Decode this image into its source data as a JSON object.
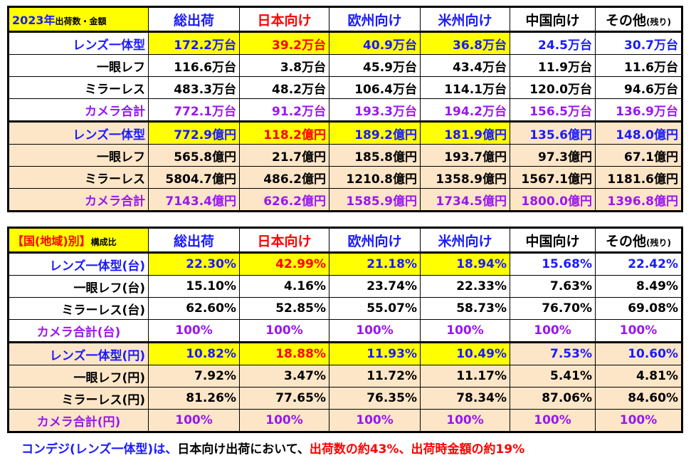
{
  "table1": {
    "header": [
      [
        "2023年",
        "出荷数・金額"
      ],
      "総出荷",
      "日本向け",
      "欧州向け",
      "米州向け",
      "中国向け",
      [
        "その他",
        "(残り)"
      ]
    ],
    "rows": [
      [
        "レンズ一体型",
        "172.2万台",
        "39.2万台",
        "40.9万台",
        "36.8万台",
        "24.5万台",
        "30.7万台"
      ],
      [
        "一眼レフ",
        "116.6万台",
        "3.8万台",
        "45.9万台",
        "43.4万台",
        "11.9万台",
        "11.6万台"
      ],
      [
        "ミラーレス",
        "483.3万台",
        "48.2万台",
        "106.4万台",
        "114.1万台",
        "120.0万台",
        "94.6万台"
      ],
      [
        "カメラ合計",
        "772.1万台",
        "91.2万台",
        "193.3万台",
        "194.2万台",
        "156.5万台",
        "136.9万台"
      ],
      [
        "レンズ一体型",
        "772.9億円",
        "118.2億円",
        "189.2億円",
        "181.9億円",
        "135.6億円",
        "148.0億円"
      ],
      [
        "一眼レフ",
        "565.8億円",
        "21.7億円",
        "185.8億円",
        "193.7億円",
        "97.3億円",
        "67.1億円"
      ],
      [
        "ミラーレス",
        "5804.7億円",
        "486.2億円",
        "1210.8億円",
        "1358.9億円",
        "1567.1億円",
        "1181.6億円"
      ],
      [
        "カメラ合計",
        "7143.4億円",
        "626.2億円",
        "1585.9億円",
        "1734.5億円",
        "1800.0億円",
        "1396.8億円"
      ]
    ]
  },
  "table2": {
    "header": [
      [
        "【国(地域)別】",
        "構成比"
      ],
      "総出荷",
      "日本向け",
      "欧州向け",
      "米州向け",
      "中国向け",
      [
        "その他",
        "(残り)"
      ]
    ],
    "rows": [
      [
        "レンズ一体型(台)",
        "22.30%",
        "42.99%",
        "21.18%",
        "18.94%",
        "15.68%",
        "22.42%"
      ],
      [
        "一眼レフ(台)",
        "15.10%",
        "4.16%",
        "23.74%",
        "22.33%",
        "7.63%",
        "8.49%"
      ],
      [
        "ミラーレス(台)",
        "62.60%",
        "52.85%",
        "55.07%",
        "58.73%",
        "76.70%",
        "69.08%"
      ],
      [
        "カメラ合計(台)",
        "100%",
        "100%",
        "100%",
        "100%",
        "100%",
        "100%"
      ],
      [
        "レンズ一体型(円)",
        "10.82%",
        "18.88%",
        "11.93%",
        "10.49%",
        "7.53%",
        "10.60%"
      ],
      [
        "一眼レフ(円)",
        "7.92%",
        "3.47%",
        "11.72%",
        "11.17%",
        "5.41%",
        "4.81%"
      ],
      [
        "ミラーレス(円)",
        "81.26%",
        "77.65%",
        "76.35%",
        "78.34%",
        "87.06%",
        "84.60%"
      ],
      [
        "カメラ合計(円)",
        "100%",
        "100%",
        "100%",
        "100%",
        "100%",
        "100%"
      ]
    ]
  },
  "note": [
    "コンデジ(レンズ一体型)は、",
    "日本向け出荷において、",
    "出荷数の約43%、出荷時金額の約19%"
  ]
}
